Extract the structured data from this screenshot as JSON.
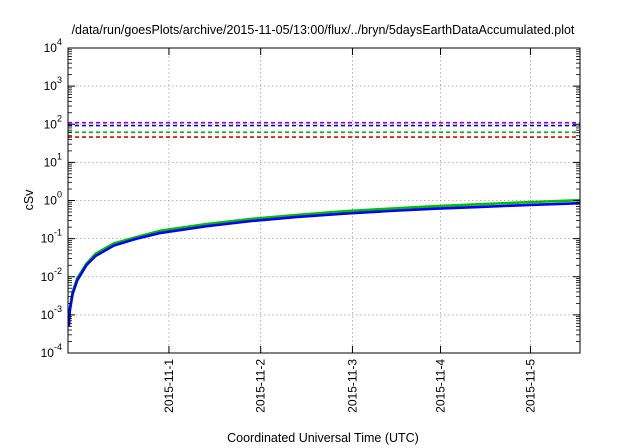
{
  "chart_data": {
    "type": "line",
    "title": "/data/run/goesPlots/archive/2015-11-05/13:00/flux/../bryn/5daysEarthDataAccumulated.plot",
    "xlabel": "Coordinated Universal Time (UTC)",
    "ylabel": "cSv",
    "y_scale": "log",
    "ylim_exponents": [
      -4,
      4
    ],
    "y_ticks": [
      {
        "base": "10",
        "exp": "-4"
      },
      {
        "base": "10",
        "exp": "-3"
      },
      {
        "base": "10",
        "exp": "-2"
      },
      {
        "base": "10",
        "exp": "-1"
      },
      {
        "base": "10",
        "exp": "0"
      },
      {
        "base": "10",
        "exp": "1"
      },
      {
        "base": "10",
        "exp": "2"
      },
      {
        "base": "10",
        "exp": "3"
      },
      {
        "base": "10",
        "exp": "4"
      }
    ],
    "xlim_days": [
      0,
      5.58
    ],
    "x_ticks": [
      {
        "label": "2015-11-1",
        "day": 1.1
      },
      {
        "label": "2015-11-2",
        "day": 2.1
      },
      {
        "label": "2015-11-3",
        "day": 3.1
      },
      {
        "label": "2015-11-4",
        "day": 4.06
      },
      {
        "label": "2015-11-5",
        "day": 5.04
      }
    ],
    "grid": true,
    "legend": "none",
    "reference_lines": [
      {
        "value": 110,
        "color": "#9400d3",
        "style": "dashed"
      },
      {
        "value": 92,
        "color": "#0000ff",
        "style": "dashed"
      },
      {
        "value": 62,
        "color": "#00c000",
        "style": "dashed"
      },
      {
        "value": 46,
        "color": "#e00000",
        "style": "dashed"
      }
    ],
    "series": [
      {
        "color": "#00c000",
        "points": [
          [
            0.01,
            0.0006
          ],
          [
            0.02,
            0.0015
          ],
          [
            0.05,
            0.004
          ],
          [
            0.1,
            0.009
          ],
          [
            0.2,
            0.022
          ],
          [
            0.3,
            0.04
          ],
          [
            0.5,
            0.075
          ],
          [
            0.75,
            0.11
          ],
          [
            1.0,
            0.16
          ],
          [
            1.5,
            0.24
          ],
          [
            2.0,
            0.33
          ],
          [
            2.5,
            0.42
          ],
          [
            3.0,
            0.52
          ],
          [
            3.5,
            0.61
          ],
          [
            4.0,
            0.71
          ],
          [
            4.5,
            0.8
          ],
          [
            5.0,
            0.9
          ],
          [
            5.58,
            1.02
          ]
        ]
      },
      {
        "color": "#0000ff",
        "points": [
          [
            0.01,
            0.0005
          ],
          [
            0.02,
            0.0013
          ],
          [
            0.05,
            0.0035
          ],
          [
            0.1,
            0.008
          ],
          [
            0.2,
            0.02
          ],
          [
            0.3,
            0.035
          ],
          [
            0.5,
            0.066
          ],
          [
            0.75,
            0.1
          ],
          [
            1.0,
            0.14
          ],
          [
            1.5,
            0.21
          ],
          [
            2.0,
            0.29
          ],
          [
            2.5,
            0.37
          ],
          [
            3.0,
            0.45
          ],
          [
            3.5,
            0.53
          ],
          [
            4.0,
            0.61
          ],
          [
            4.5,
            0.68
          ],
          [
            5.0,
            0.76
          ],
          [
            5.58,
            0.85
          ]
        ]
      }
    ]
  }
}
